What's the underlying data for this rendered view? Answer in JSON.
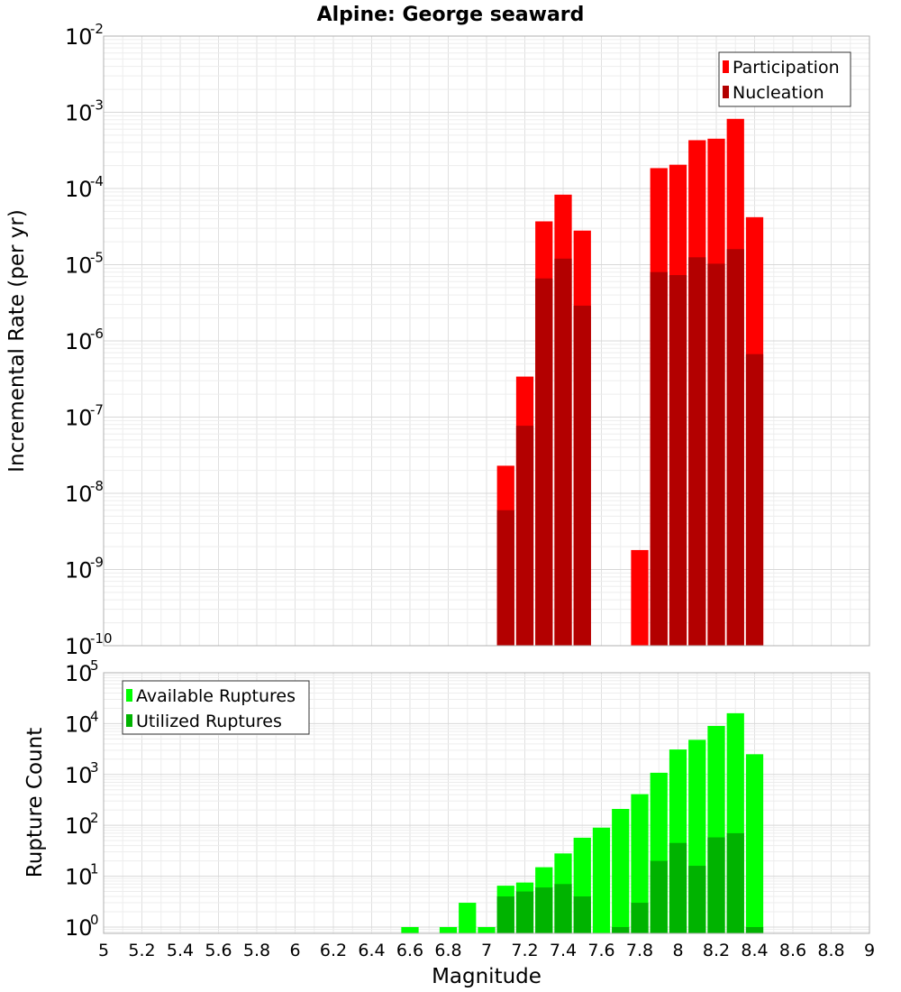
{
  "chart_data": [
    {
      "type": "bar",
      "title": "Alpine: George seaward",
      "xlabel": "Magnitude",
      "ylabel": "Incremental Rate (per yr)",
      "yscale": "log",
      "ylim": [
        1e-10,
        0.01
      ],
      "xlim": [
        5,
        9
      ],
      "bin_width": 0.1,
      "legend": "top-right",
      "series": [
        {
          "name": "Participation",
          "color": "#ff0000",
          "x": [
            7.1,
            7.2,
            7.3,
            7.4,
            7.5,
            7.8,
            7.9,
            8.0,
            8.1,
            8.2,
            8.3,
            8.4
          ],
          "values": [
            2.3e-08,
            3.4e-07,
            3.7e-05,
            8.3e-05,
            2.8e-05,
            1.8e-09,
            0.000185,
            0.000205,
            0.00043,
            0.00045,
            0.00082,
            4.2e-05
          ]
        },
        {
          "name": "Nucleation",
          "color": "#b30000",
          "x": [
            7.1,
            7.2,
            7.3,
            7.4,
            7.5,
            7.9,
            8.0,
            8.1,
            8.2,
            8.3,
            8.4
          ],
          "values": [
            6e-09,
            7.7e-08,
            6.6e-06,
            1.2e-05,
            2.9e-06,
            8e-06,
            7.3e-06,
            1.25e-05,
            1.03e-05,
            1.6e-05,
            6.7e-07
          ]
        }
      ]
    },
    {
      "type": "bar",
      "title": "",
      "xlabel": "Magnitude",
      "ylabel": "Rupture Count",
      "yscale": "log",
      "ylim": [
        0.75,
        100000.0
      ],
      "xlim": [
        5,
        9
      ],
      "bin_width": 0.1,
      "legend": "top-left",
      "x_ticks": [
        "5",
        "5.2",
        "5.4",
        "5.6",
        "5.8",
        "6",
        "6.2",
        "6.4",
        "6.6",
        "6.8",
        "7",
        "7.2",
        "7.4",
        "7.6",
        "7.8",
        "8",
        "8.2",
        "8.4",
        "8.6",
        "8.8",
        "9"
      ],
      "series": [
        {
          "name": "Available Ruptures",
          "color": "#00ff00",
          "x": [
            6.6,
            6.8,
            6.9,
            7.0,
            7.1,
            7.2,
            7.3,
            7.4,
            7.5,
            7.6,
            7.7,
            7.8,
            7.9,
            8.0,
            8.1,
            8.2,
            8.3,
            8.4
          ],
          "values": [
            1,
            1,
            3,
            1,
            6.5,
            7.5,
            15,
            28,
            57,
            90,
            210,
            410,
            1080,
            3100,
            4800,
            9000,
            16000,
            2500
          ]
        },
        {
          "name": "Utilized Ruptures",
          "color": "#00b300",
          "x": [
            7.1,
            7.2,
            7.3,
            7.4,
            7.5,
            7.7,
            7.8,
            7.9,
            8.0,
            8.1,
            8.2,
            8.3,
            8.4
          ],
          "values": [
            4,
            5,
            6,
            7,
            4,
            1,
            3,
            20,
            45,
            16,
            58,
            70,
            1
          ]
        }
      ]
    }
  ]
}
